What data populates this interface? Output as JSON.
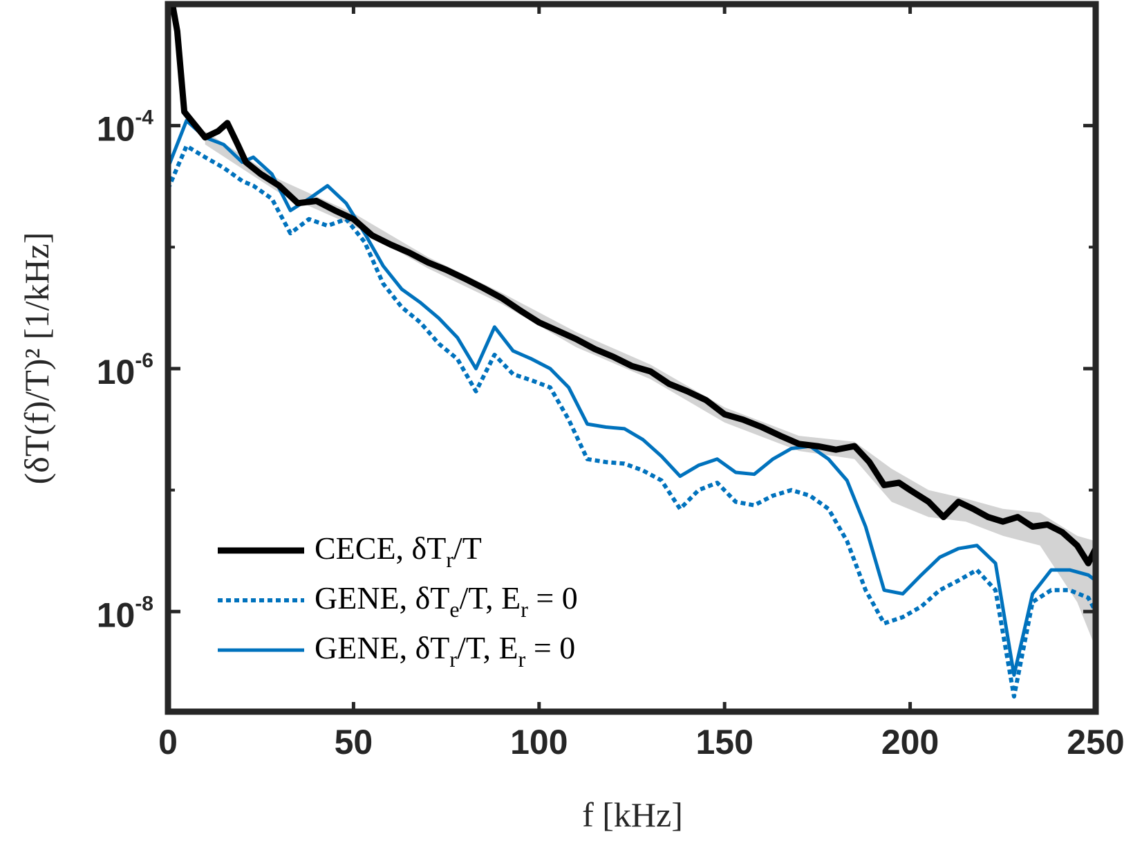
{
  "chart_data": {
    "type": "line",
    "xlabel": "f [kHz]",
    "ylabel": "(δT(f)/T)² [1/kHz]",
    "y_scale": "log",
    "xlim": [
      0,
      250
    ],
    "ylim": [
      1.5e-09,
      0.001
    ],
    "x_ticks": [
      {
        "value": 0,
        "label": "0"
      },
      {
        "value": 50,
        "label": "50"
      },
      {
        "value": 100,
        "label": "100"
      },
      {
        "value": 150,
        "label": "150"
      },
      {
        "value": 200,
        "label": "200"
      },
      {
        "value": 250,
        "label": "250"
      }
    ],
    "y_ticks": [
      {
        "value": 1e-08,
        "base": "10",
        "exp": "-8"
      },
      {
        "value": 1e-06,
        "base": "10",
        "exp": "-6"
      },
      {
        "value": 0.0001,
        "base": "10",
        "exp": "-4"
      }
    ],
    "grid": false,
    "legend_position": "bottom-left",
    "colors": {
      "cece": "#000000",
      "gene": "#0072BD",
      "band": "#d3d3d3",
      "axis": "#262626"
    },
    "series": [
      {
        "name": "CECE, δT_r/T",
        "legend_label": "CECE, δT",
        "legend_sub": "r",
        "legend_rest": "/T",
        "style": "solid",
        "color": "#000000",
        "x": [
          1.2,
          2.5,
          4.4,
          10,
          13.5,
          16,
          18.8,
          21,
          25,
          30,
          35,
          40,
          45,
          50,
          55,
          60,
          65,
          70,
          75,
          80,
          85,
          90,
          95,
          100,
          105,
          110,
          115,
          120,
          125,
          130,
          135,
          140,
          145,
          150,
          155,
          160,
          165,
          170,
          175,
          180,
          185,
          189,
          193,
          197,
          200,
          205,
          209,
          213,
          217,
          221,
          225,
          229,
          233,
          237,
          241,
          245,
          248,
          250
        ],
        "y": [
          0.001,
          0.0006,
          0.00013,
          8e-05,
          9e-05,
          0.000105,
          7e-05,
          5e-05,
          4e-05,
          3.2e-05,
          2.3e-05,
          2.4e-05,
          2e-05,
          1.7e-05,
          1.25e-05,
          1.05e-05,
          9e-06,
          7.5e-06,
          6.5e-06,
          5.5e-06,
          4.6e-06,
          3.8e-06,
          3e-06,
          2.4e-06,
          2.05e-06,
          1.75e-06,
          1.45e-06,
          1.25e-06,
          1.05e-06,
          9.5e-07,
          7.5e-07,
          6.5e-07,
          5.5e-07,
          4.2e-07,
          3.8e-07,
          3.3e-07,
          2.8e-07,
          2.4e-07,
          2.3e-07,
          2.15e-07,
          2.3e-07,
          1.7e-07,
          1.1e-07,
          1.15e-07,
          1e-07,
          8e-08,
          6e-08,
          8e-08,
          7e-08,
          6e-08,
          5.5e-08,
          6e-08,
          5e-08,
          5.2e-08,
          4.5e-08,
          3.5e-08,
          2.5e-08,
          3.3e-08
        ]
      },
      {
        "name": "GENE, δT_e/T, E_r = 0",
        "legend_label": "GENE, δT",
        "legend_sub": "e",
        "legend_rest": "/T, E",
        "legend_sub2": "r",
        "legend_end": " = 0",
        "style": "dotted",
        "color": "#0072BD",
        "x": [
          0,
          5,
          10,
          15,
          20,
          23,
          28,
          33,
          38,
          43,
          48,
          53,
          58,
          63,
          68,
          73,
          78,
          83,
          88,
          93,
          98,
          103,
          108,
          113,
          118,
          123,
          128,
          133,
          138,
          143,
          148,
          153,
          158,
          163,
          168,
          173,
          178,
          183,
          188,
          193,
          198,
          203,
          208,
          213,
          218,
          223,
          228,
          233,
          238,
          243,
          248,
          250
        ],
        "y": [
          3e-05,
          6.8e-05,
          5.5e-05,
          4.5e-05,
          3.5e-05,
          3.2e-05,
          2.5e-05,
          1.3e-05,
          1.7e-05,
          1.5e-05,
          1.7e-05,
          1.1e-05,
          5e-06,
          3.2e-06,
          2.4e-06,
          1.6e-06,
          1.2e-06,
          6.5e-07,
          1.3e-06,
          9e-07,
          8e-07,
          7e-07,
          3.8e-07,
          1.8e-07,
          1.7e-07,
          1.65e-07,
          1.45e-07,
          1.2e-07,
          7e-08,
          1e-07,
          1.15e-07,
          8e-08,
          7.5e-08,
          9e-08,
          1e-07,
          9e-08,
          7e-08,
          3.8e-08,
          1.5e-08,
          8e-09,
          9e-09,
          1.1e-08,
          1.5e-08,
          1.8e-08,
          2.2e-08,
          1.5e-08,
          2e-09,
          1.2e-08,
          1.5e-08,
          1.5e-08,
          1.3e-08,
          1e-08
        ]
      },
      {
        "name": "GENE, δT_r/T, E_r = 0",
        "legend_label": "GENE, δT",
        "legend_sub": "r",
        "legend_rest": "/T, E",
        "legend_sub2": "r",
        "legend_end": " = 0",
        "style": "solid",
        "color": "#0072BD",
        "x": [
          0,
          5,
          10,
          15,
          20,
          23,
          28,
          33,
          38,
          43,
          48,
          53,
          58,
          63,
          68,
          73,
          78,
          83,
          88,
          93,
          98,
          103,
          108,
          113,
          118,
          123,
          128,
          133,
          138,
          143,
          148,
          153,
          158,
          163,
          168,
          173,
          178,
          183,
          188,
          193,
          198,
          203,
          208,
          213,
          218,
          223,
          228,
          233,
          238,
          243,
          248,
          250
        ],
        "y": [
          4.5e-05,
          0.00011,
          8e-05,
          7e-05,
          5e-05,
          5.5e-05,
          4e-05,
          2e-05,
          2.5e-05,
          3.2e-05,
          2.3e-05,
          1.3e-05,
          7e-06,
          4.5e-06,
          3.5e-06,
          2.6e-06,
          1.8e-06,
          1e-06,
          2.2e-06,
          1.4e-06,
          1.2e-06,
          1e-06,
          7e-07,
          3.5e-07,
          3.3e-07,
          3.2e-07,
          2.6e-07,
          1.9e-07,
          1.3e-07,
          1.6e-07,
          1.8e-07,
          1.4e-07,
          1.35e-07,
          1.8e-07,
          2.2e-07,
          2.3e-07,
          1.8e-07,
          1.2e-07,
          5e-08,
          1.5e-08,
          1.4e-08,
          2e-08,
          2.8e-08,
          3.3e-08,
          3.5e-08,
          2.5e-08,
          3e-09,
          1.4e-08,
          2.2e-08,
          2.2e-08,
          2e-08,
          1.8e-08
        ]
      }
    ],
    "error_band": {
      "series": "CECE, δT_r/T",
      "color": "#d3d3d3",
      "x": [
        10,
        30,
        50,
        70,
        90,
        110,
        130,
        150,
        170,
        185,
        195,
        205,
        215,
        225,
        235,
        245,
        250
      ],
      "upper": [
        9e-05,
        3.6e-05,
        1.9e-05,
        8.3e-06,
        4.2e-06,
        2e-06,
        1.08e-06,
        4.8e-07,
        2.8e-07,
        2.5e-07,
        1.5e-07,
        1e-07,
        8.5e-08,
        7e-08,
        6.5e-08,
        4.2e-08,
        3.8e-08
      ],
      "lower": [
        7e-05,
        2.8e-05,
        1.5e-05,
        6.7e-06,
        3.4e-06,
        1.5e-06,
        8.2e-07,
        3.6e-07,
        2.1e-07,
        1.8e-07,
        8e-08,
        6e-08,
        5.5e-08,
        4.2e-08,
        3.5e-08,
        1.2e-08,
        5e-09
      ]
    }
  }
}
